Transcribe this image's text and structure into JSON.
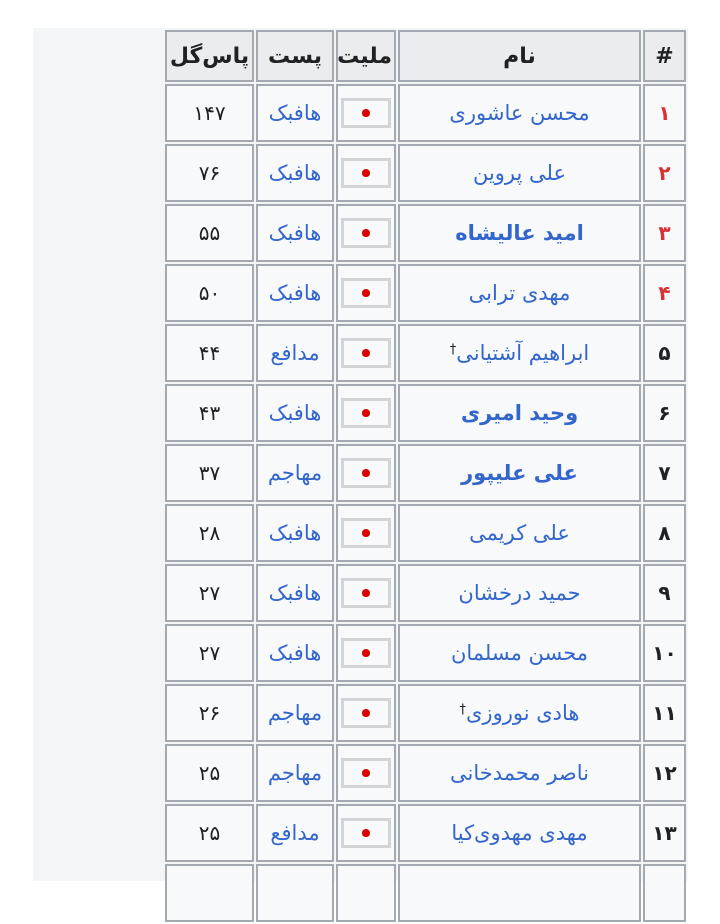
{
  "page": {
    "background": "#ffffff",
    "panel_bg": "#f4f5f7"
  },
  "colors": {
    "link_blue": "#3366cc",
    "rank_highlight_red": "#d73333",
    "text": "#202122",
    "border": "#a2a9b1",
    "header_bg": "#eaecf0",
    "cell_bg": "#f8f9fa",
    "flag_green": "#239f40",
    "flag_red": "#da0000"
  },
  "table": {
    "direction": "rtl",
    "columns": [
      {
        "key": "rank",
        "label": "#"
      },
      {
        "key": "name",
        "label": "نام"
      },
      {
        "key": "nationality",
        "label": "ملیت"
      },
      {
        "key": "position",
        "label": "پست"
      },
      {
        "key": "assists",
        "label": "پاس‌گل"
      }
    ],
    "flag_icon": "iran-flag",
    "dagger_symbol": "†",
    "rows": [
      {
        "rank": "۱",
        "rank_red": true,
        "name": "محسن عاشوری",
        "bold": false,
        "dagger": false,
        "nationality": "iran",
        "position": "هافبک",
        "assists": "۱۴۷"
      },
      {
        "rank": "۲",
        "rank_red": true,
        "name": "علی پروین",
        "bold": false,
        "dagger": false,
        "nationality": "iran",
        "position": "هافبک",
        "assists": "۷۶"
      },
      {
        "rank": "۳",
        "rank_red": true,
        "name": "امید عالیشاه",
        "bold": true,
        "dagger": false,
        "nationality": "iran",
        "position": "هافبک",
        "assists": "۵۵"
      },
      {
        "rank": "۴",
        "rank_red": true,
        "name": "مهدی ترابی",
        "bold": false,
        "dagger": false,
        "nationality": "iran",
        "position": "هافبک",
        "assists": "۵۰"
      },
      {
        "rank": "۵",
        "rank_red": false,
        "name": "ابراهیم آشتیانی",
        "bold": false,
        "dagger": true,
        "nationality": "iran",
        "position": "مدافع",
        "assists": "۴۴"
      },
      {
        "rank": "۶",
        "rank_red": false,
        "name": "وحید امیری",
        "bold": true,
        "dagger": false,
        "nationality": "iran",
        "position": "هافبک",
        "assists": "۴۳"
      },
      {
        "rank": "۷",
        "rank_red": false,
        "name": "علی علیپور",
        "bold": true,
        "dagger": false,
        "nationality": "iran",
        "position": "مهاجم",
        "assists": "۳۷"
      },
      {
        "rank": "۸",
        "rank_red": false,
        "name": "علی کریمی",
        "bold": false,
        "dagger": false,
        "nationality": "iran",
        "position": "هافبک",
        "assists": "۲۸"
      },
      {
        "rank": "۹",
        "rank_red": false,
        "name": "حمید درخشان",
        "bold": false,
        "dagger": false,
        "nationality": "iran",
        "position": "هافبک",
        "assists": "۲۷"
      },
      {
        "rank": "۱۰",
        "rank_red": false,
        "name": "محسن مسلمان",
        "bold": false,
        "dagger": false,
        "nationality": "iran",
        "position": "هافبک",
        "assists": "۲۷"
      },
      {
        "rank": "۱۱",
        "rank_red": false,
        "name": "هادی نوروزی",
        "bold": false,
        "dagger": true,
        "nationality": "iran",
        "position": "مهاجم",
        "assists": "۲۶"
      },
      {
        "rank": "۱۲",
        "rank_red": false,
        "name": "ناصر محمدخانی",
        "bold": false,
        "dagger": false,
        "nationality": "iran",
        "position": "مهاجم",
        "assists": "۲۵"
      },
      {
        "rank": "۱۳",
        "rank_red": false,
        "name": "مهدی مهدوی‌کیا",
        "bold": false,
        "dagger": false,
        "nationality": "iran",
        "position": "مدافع",
        "assists": "۲۵"
      }
    ],
    "partial_next_row": true
  }
}
